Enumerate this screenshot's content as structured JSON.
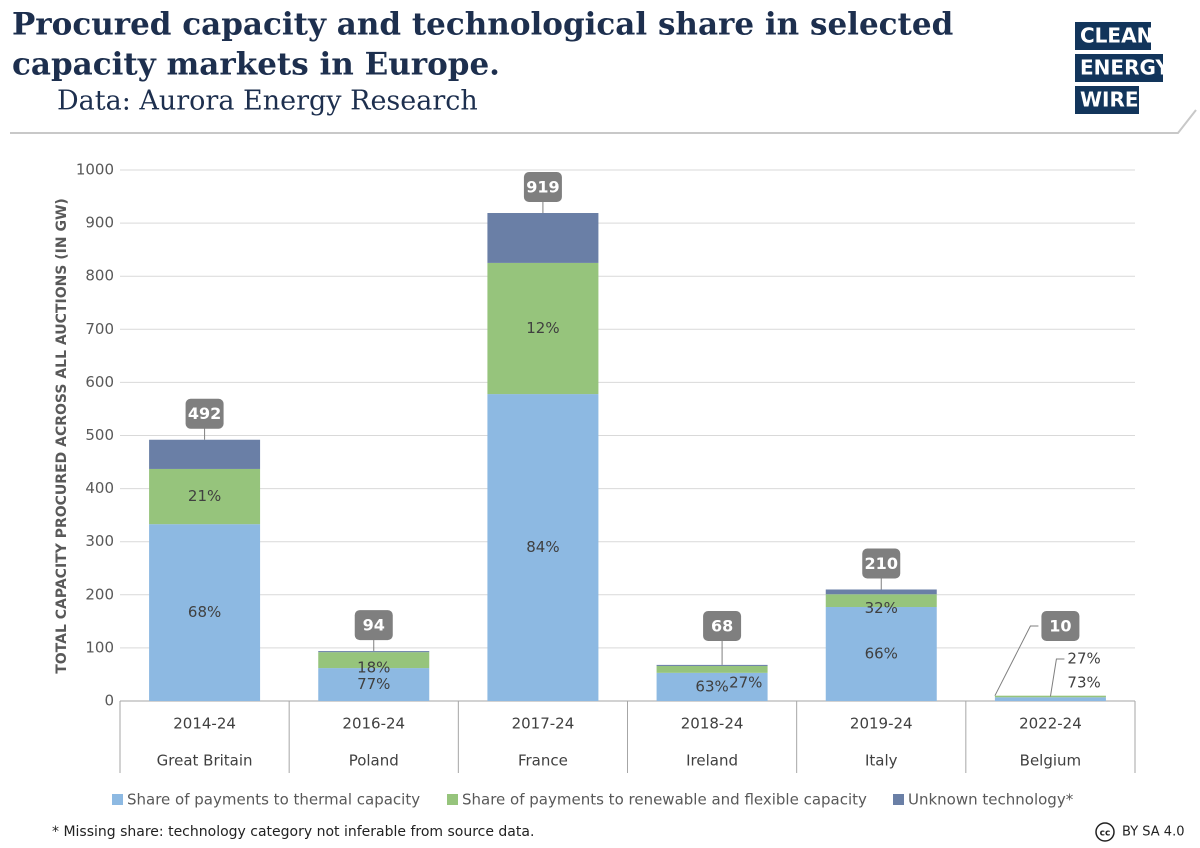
{
  "header": {
    "title_line1": "Procured capacity and technological share in selected",
    "title_line2": "capacity markets in Europe.",
    "subtitle": "Data: Aurora Energy Research",
    "logo": [
      "CLEAN",
      "ENERGY",
      "WIRE"
    ]
  },
  "chart_data": {
    "type": "stacked_bar",
    "y_label": "TOTAL CAPACITY PROCURED ACROSS ALL AUCTIONS (IN GW)",
    "categories": [
      "2014-24",
      "2016-24",
      "2017-24",
      "2018-24",
      "2019-24",
      "2022-24"
    ],
    "groups": [
      "Great Britain",
      "Poland",
      "France",
      "Ireland",
      "Italy",
      "Belgium"
    ],
    "ylim": [
      0,
      1000
    ],
    "yticks": [
      0,
      100,
      200,
      300,
      400,
      500,
      600,
      700,
      800,
      900,
      1000
    ],
    "grid": true,
    "series": [
      {
        "name": "Share of payments to thermal capacity",
        "color": "#8db9e2",
        "values": [
          333,
          62,
          578,
          53,
          177,
          7
        ],
        "share_labels": [
          "68%",
          "77%",
          "84%",
          "63%",
          "66%",
          "73%"
        ]
      },
      {
        "name": "Share of payments to renewable and flexible capacity",
        "color": "#96c47c",
        "values": [
          104,
          30,
          247,
          13,
          24,
          3
        ],
        "share_labels": [
          "21%",
          "18%",
          "12%",
          "27%",
          "32%",
          "27%"
        ]
      },
      {
        "name": "Unknown technology*",
        "color": "#6a7fa6",
        "values": [
          55,
          2,
          94,
          2,
          9,
          0
        ]
      }
    ],
    "totals": [
      492,
      94,
      919,
      68,
      210,
      10
    ]
  },
  "footnote": "* Missing share: technology category not inferable from source data.",
  "license": {
    "icon": "cc",
    "text": "BY SA 4.0"
  }
}
